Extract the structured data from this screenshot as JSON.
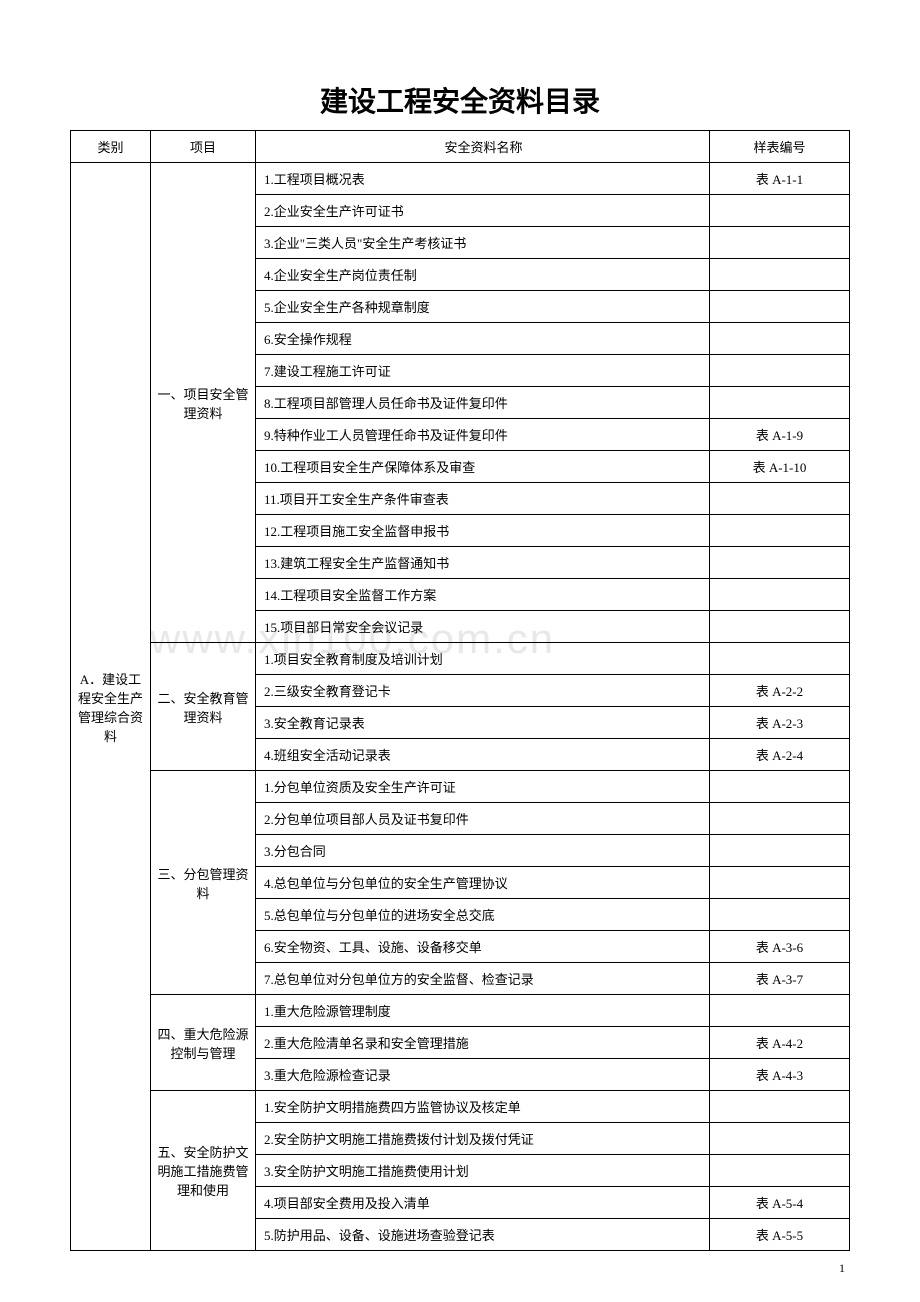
{
  "title": "建设工程安全资料目录",
  "watermark": "www.xin100.com.cn",
  "page_number": "1",
  "headers": {
    "category": "类别",
    "project": "项目",
    "name": "安全资料名称",
    "code": "样表编号"
  },
  "category": "A．建设工程安全生产管理综合资料",
  "sections": [
    {
      "project": "一、项目安全管理资料",
      "rows": [
        {
          "name": "1.工程项目概况表",
          "code": "表 A-1-1"
        },
        {
          "name": "2.企业安全生产许可证书",
          "code": ""
        },
        {
          "name": "3.企业\"三类人员\"安全生产考核证书",
          "code": ""
        },
        {
          "name": "4.企业安全生产岗位责任制",
          "code": ""
        },
        {
          "name": "5.企业安全生产各种规章制度",
          "code": ""
        },
        {
          "name": "6.安全操作规程",
          "code": ""
        },
        {
          "name": "7.建设工程施工许可证",
          "code": ""
        },
        {
          "name": "8.工程项目部管理人员任命书及证件复印件",
          "code": ""
        },
        {
          "name": "9.特种作业工人员管理任命书及证件复印件",
          "code": "表 A-1-9"
        },
        {
          "name": "10.工程项目安全生产保障体系及审查",
          "code": "表 A-1-10"
        },
        {
          "name": "11.项目开工安全生产条件审查表",
          "code": ""
        },
        {
          "name": "12.工程项目施工安全监督申报书",
          "code": ""
        },
        {
          "name": "13.建筑工程安全生产监督通知书",
          "code": ""
        },
        {
          "name": "14.工程项目安全监督工作方案",
          "code": ""
        },
        {
          "name": "15.项目部日常安全会议记录",
          "code": ""
        }
      ]
    },
    {
      "project": "二、安全教育管理资料",
      "rows": [
        {
          "name": "1.项目安全教育制度及培训计划",
          "code": ""
        },
        {
          "name": "2.三级安全教育登记卡",
          "code": "表 A-2-2"
        },
        {
          "name": "3.安全教育记录表",
          "code": "表 A-2-3"
        },
        {
          "name": "4.班组安全活动记录表",
          "code": "表 A-2-4"
        }
      ]
    },
    {
      "project": "三、分包管理资料",
      "rows": [
        {
          "name": "1.分包单位资质及安全生产许可证",
          "code": ""
        },
        {
          "name": "2.分包单位项目部人员及证书复印件",
          "code": ""
        },
        {
          "name": "3.分包合同",
          "code": ""
        },
        {
          "name": "4.总包单位与分包单位的安全生产管理协议",
          "code": ""
        },
        {
          "name": "5.总包单位与分包单位的进场安全总交底",
          "code": ""
        },
        {
          "name": "6.安全物资、工具、设施、设备移交单",
          "code": "表 A-3-6"
        },
        {
          "name": "7.总包单位对分包单位方的安全监督、检查记录",
          "code": "表 A-3-7"
        }
      ]
    },
    {
      "project": "四、重大危险源控制与管理",
      "rows": [
        {
          "name": "1.重大危险源管理制度",
          "code": ""
        },
        {
          "name": "2.重大危险清单名录和安全管理措施",
          "code": "表 A-4-2"
        },
        {
          "name": "3.重大危险源检查记录",
          "code": "表 A-4-3"
        }
      ]
    },
    {
      "project": "五、安全防护文明施工措施费管理和使用",
      "rows": [
        {
          "name": "1.安全防护文明措施费四方监管协议及核定单",
          "code": ""
        },
        {
          "name": "2.安全防护文明施工措施费拨付计划及拨付凭证",
          "code": ""
        },
        {
          "name": "3.安全防护文明施工措施费使用计划",
          "code": ""
        },
        {
          "name": "4.项目部安全费用及投入清单",
          "code": "表 A-5-4"
        },
        {
          "name": "5.防护用品、设备、设施进场查验登记表",
          "code": "表 A-5-5"
        }
      ]
    }
  ]
}
